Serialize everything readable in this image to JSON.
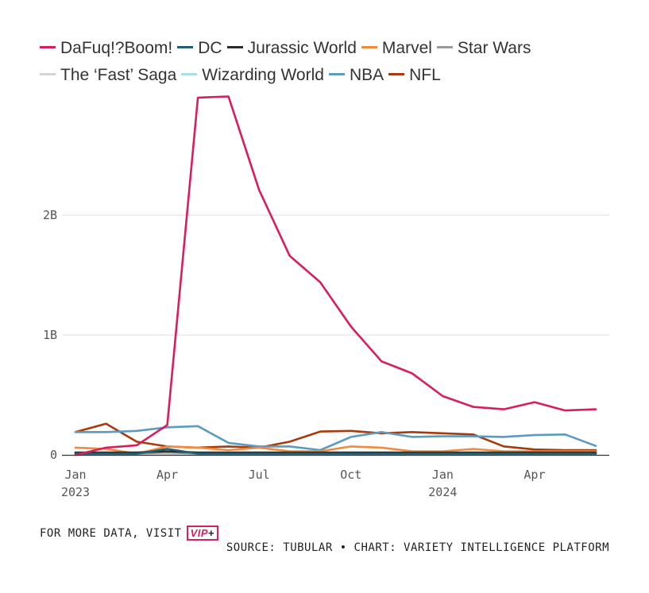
{
  "chart_data": {
    "type": "line",
    "x": [
      "2023-01",
      "2023-02",
      "2023-03",
      "2023-04",
      "2023-05",
      "2023-06",
      "2023-07",
      "2023-08",
      "2023-09",
      "2023-10",
      "2023-11",
      "2023-12",
      "2024-01",
      "2024-02",
      "2024-03",
      "2024-04",
      "2024-05",
      "2024-06"
    ],
    "x_ticks": [
      {
        "x": "2023-01",
        "label": "Jan",
        "sublabel": "2023"
      },
      {
        "x": "2023-04",
        "label": "Apr",
        "sublabel": ""
      },
      {
        "x": "2023-07",
        "label": "Jul",
        "sublabel": ""
      },
      {
        "x": "2023-10",
        "label": "Oct",
        "sublabel": ""
      },
      {
        "x": "2024-01",
        "label": "Jan",
        "sublabel": "2024"
      },
      {
        "x": "2024-04",
        "label": "Apr",
        "sublabel": ""
      }
    ],
    "y_ticks": [
      {
        "value": 0,
        "label": "0"
      },
      {
        "value": 1000000000,
        "label": "1B"
      },
      {
        "value": 2000000000,
        "label": "2B"
      }
    ],
    "ylim": [
      0,
      3000000000
    ],
    "grid": true,
    "legend_position": "top",
    "series": [
      {
        "name": "DaFuq!?Boom!",
        "color": "#d81e5b",
        "values": [
          0,
          60000000,
          80000000,
          250000000,
          2980000000,
          2990000000,
          2210000000,
          1660000000,
          1440000000,
          1070000000,
          780000000,
          680000000,
          490000000,
          400000000,
          380000000,
          440000000,
          370000000,
          380000000
        ]
      },
      {
        "name": "DC",
        "color": "#1f5f73",
        "values": [
          10000000,
          10000000,
          10000000,
          50000000,
          10000000,
          10000000,
          10000000,
          10000000,
          10000000,
          10000000,
          10000000,
          10000000,
          10000000,
          10000000,
          10000000,
          10000000,
          10000000,
          10000000
        ]
      },
      {
        "name": "Jurassic World",
        "color": "#2b2b2b",
        "values": [
          20000000,
          20000000,
          20000000,
          30000000,
          20000000,
          20000000,
          20000000,
          20000000,
          20000000,
          20000000,
          20000000,
          20000000,
          20000000,
          20000000,
          20000000,
          20000000,
          20000000,
          20000000
        ]
      },
      {
        "name": "Marvel",
        "color": "#f08a3c",
        "values": [
          60000000,
          50000000,
          10000000,
          70000000,
          60000000,
          40000000,
          60000000,
          30000000,
          30000000,
          70000000,
          60000000,
          30000000,
          30000000,
          50000000,
          30000000,
          30000000,
          30000000,
          30000000
        ]
      },
      {
        "name": "Star Wars",
        "color": "#9a9a9a",
        "values": [
          10000000,
          10000000,
          10000000,
          20000000,
          10000000,
          10000000,
          10000000,
          10000000,
          10000000,
          10000000,
          10000000,
          10000000,
          10000000,
          10000000,
          10000000,
          10000000,
          10000000,
          10000000
        ]
      },
      {
        "name": "The ‘Fast’ Saga",
        "color": "#d3d3d3",
        "values": [
          10000000,
          10000000,
          10000000,
          10000000,
          10000000,
          10000000,
          10000000,
          10000000,
          10000000,
          10000000,
          10000000,
          10000000,
          10000000,
          10000000,
          10000000,
          10000000,
          10000000,
          10000000
        ]
      },
      {
        "name": "Wizarding World",
        "color": "#a8dfe0",
        "values": [
          10000000,
          10000000,
          10000000,
          10000000,
          10000000,
          10000000,
          10000000,
          10000000,
          10000000,
          10000000,
          10000000,
          10000000,
          10000000,
          10000000,
          10000000,
          10000000,
          10000000,
          10000000
        ]
      },
      {
        "name": "NBA",
        "color": "#5b9bbf",
        "values": [
          190000000,
          190000000,
          200000000,
          230000000,
          240000000,
          100000000,
          70000000,
          70000000,
          40000000,
          150000000,
          190000000,
          150000000,
          155000000,
          155000000,
          150000000,
          165000000,
          170000000,
          75000000
        ]
      },
      {
        "name": "NFL",
        "color": "#a83a0c",
        "values": [
          190000000,
          260000000,
          110000000,
          70000000,
          60000000,
          70000000,
          60000000,
          110000000,
          195000000,
          200000000,
          180000000,
          190000000,
          180000000,
          170000000,
          70000000,
          45000000,
          40000000,
          40000000
        ]
      }
    ]
  },
  "footer": {
    "more_data_text": "FOR MORE DATA, VISIT",
    "vip_badge": "VIP",
    "vip_plus": "+",
    "source_text": "SOURCE: TUBULAR • CHART: VARIETY INTELLIGENCE PLATFORM"
  }
}
